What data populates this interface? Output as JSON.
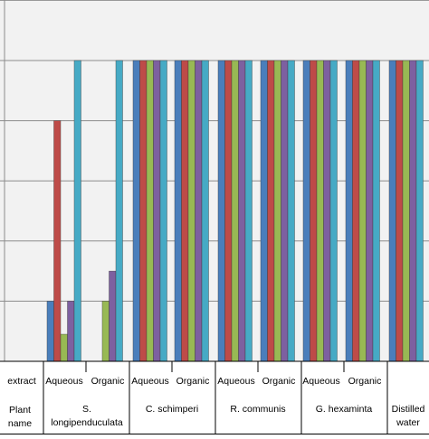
{
  "chart_data": {
    "type": "bar",
    "title": "",
    "xlabel": "",
    "ylabel": "",
    "ylim": [
      0,
      6
    ],
    "grid": true,
    "legend": "none",
    "series_colors": [
      "#4A7EBB",
      "#BE4B48",
      "#98B954",
      "#7D60A0",
      "#46AAC5"
    ],
    "categories": [
      "S. longipenduculata Aqueous",
      "S. longipenduculata Organic",
      "C. schimperi Aqueous",
      "C. schimperi Organic",
      "R. communis Aqueous",
      "R. communis Organic",
      "G. hexaminta Aqueous",
      "G. hexaminta Organic",
      "Distilled water"
    ],
    "series": [
      {
        "values": [
          1,
          0,
          5,
          5,
          5,
          5,
          5,
          5,
          5
        ]
      },
      {
        "values": [
          4,
          0,
          5,
          5,
          5,
          5,
          5,
          5,
          5
        ]
      },
      {
        "values": [
          0.45,
          1,
          5,
          5,
          5,
          5,
          5,
          5,
          5
        ]
      },
      {
        "values": [
          1,
          1.5,
          5,
          5,
          5,
          5,
          5,
          5,
          5
        ]
      },
      {
        "values": [
          5,
          5,
          5,
          5,
          5,
          5,
          5,
          5,
          5
        ]
      }
    ],
    "table": {
      "row1_header": "extract",
      "row2_header": "Plant name",
      "extract_types": [
        "Aqueous",
        "Organic",
        "Aqueous",
        "Organic",
        "Aqueous",
        "Organic",
        "Aqueous",
        "Organic",
        ""
      ],
      "plant_names": [
        "S. longipenduculata",
        "C. schimperi",
        "R. communis",
        "G. hexaminta",
        "Distilled water"
      ]
    }
  }
}
